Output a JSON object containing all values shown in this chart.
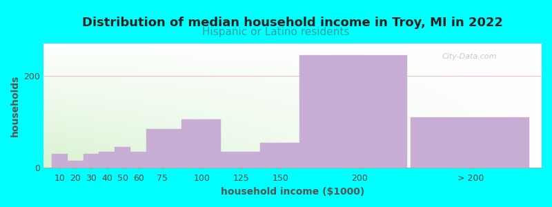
{
  "title": "Distribution of median household income in Troy, MI in 2022",
  "subtitle": "Hispanic or Latino residents",
  "xlabel": "household income ($1000)",
  "ylabel": "households",
  "bg_color": "#00FFFF",
  "bar_color": "#c8aed4",
  "grid_color": "#e8c0c8",
  "watermark": "City-Data.com",
  "values": [
    30,
    15,
    30,
    35,
    45,
    35,
    85,
    105,
    35,
    55,
    245,
    110
  ],
  "lefts": [
    5,
    15,
    25,
    35,
    45,
    55,
    65,
    87,
    112,
    137,
    162,
    232
  ],
  "widths": [
    10,
    10,
    10,
    10,
    10,
    10,
    22,
    25,
    25,
    25,
    68,
    75
  ],
  "xtick_positions": [
    10,
    20,
    30,
    40,
    50,
    60,
    75,
    100,
    125,
    150,
    200,
    270
  ],
  "xtick_labels": [
    "10",
    "20",
    "30",
    "40",
    "50",
    "60",
    "75",
    "100",
    "125",
    "150",
    "200",
    "> 200"
  ],
  "xlim": [
    0,
    315
  ],
  "ylim": [
    0,
    270
  ],
  "yticks": [
    0,
    200
  ],
  "title_fontsize": 13,
  "subtitle_fontsize": 11,
  "label_fontsize": 10,
  "tick_fontsize": 9,
  "title_color": "#222222",
  "subtitle_color": "#2aa0a0",
  "label_color": "#555555"
}
